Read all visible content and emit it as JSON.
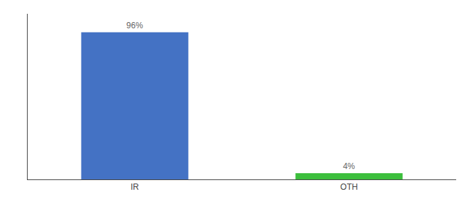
{
  "chart_data": {
    "type": "bar",
    "categories": [
      "IR",
      "OTH"
    ],
    "values": [
      96,
      4
    ],
    "value_labels": [
      "96%",
      "4%"
    ],
    "data_labels": true,
    "colors": [
      "#4472c4",
      "#3dbf3d"
    ],
    "ylim": [
      0,
      108
    ],
    "grid": false,
    "tick_labels": "x"
  }
}
